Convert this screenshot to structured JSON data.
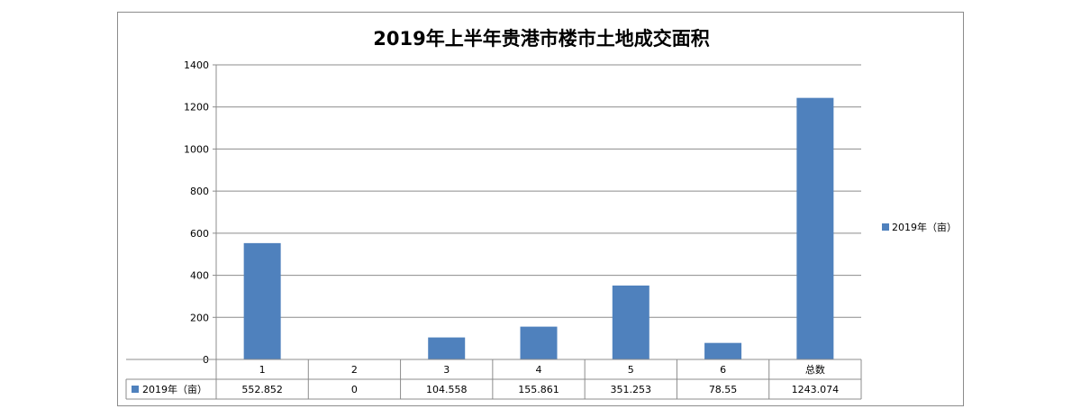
{
  "chart_data": {
    "type": "bar",
    "title": "2019年上半年贵港市楼市土地成交面积",
    "categories": [
      "1",
      "2",
      "3",
      "4",
      "5",
      "6",
      "总数"
    ],
    "series": [
      {
        "name": "2019年（亩）",
        "values": [
          552.852,
          0,
          104.558,
          155.861,
          351.253,
          78.55,
          1243.074
        ],
        "value_labels": [
          "552.852",
          "0",
          "104.558",
          "155.861",
          "351.253",
          "78.55",
          "1243.074"
        ],
        "color": "#4f81bd"
      }
    ],
    "ylim": [
      0,
      1400
    ],
    "yticks": [
      0,
      200,
      400,
      600,
      800,
      1000,
      1200,
      1400
    ],
    "grid": true,
    "legend": "right",
    "data_table": true
  }
}
